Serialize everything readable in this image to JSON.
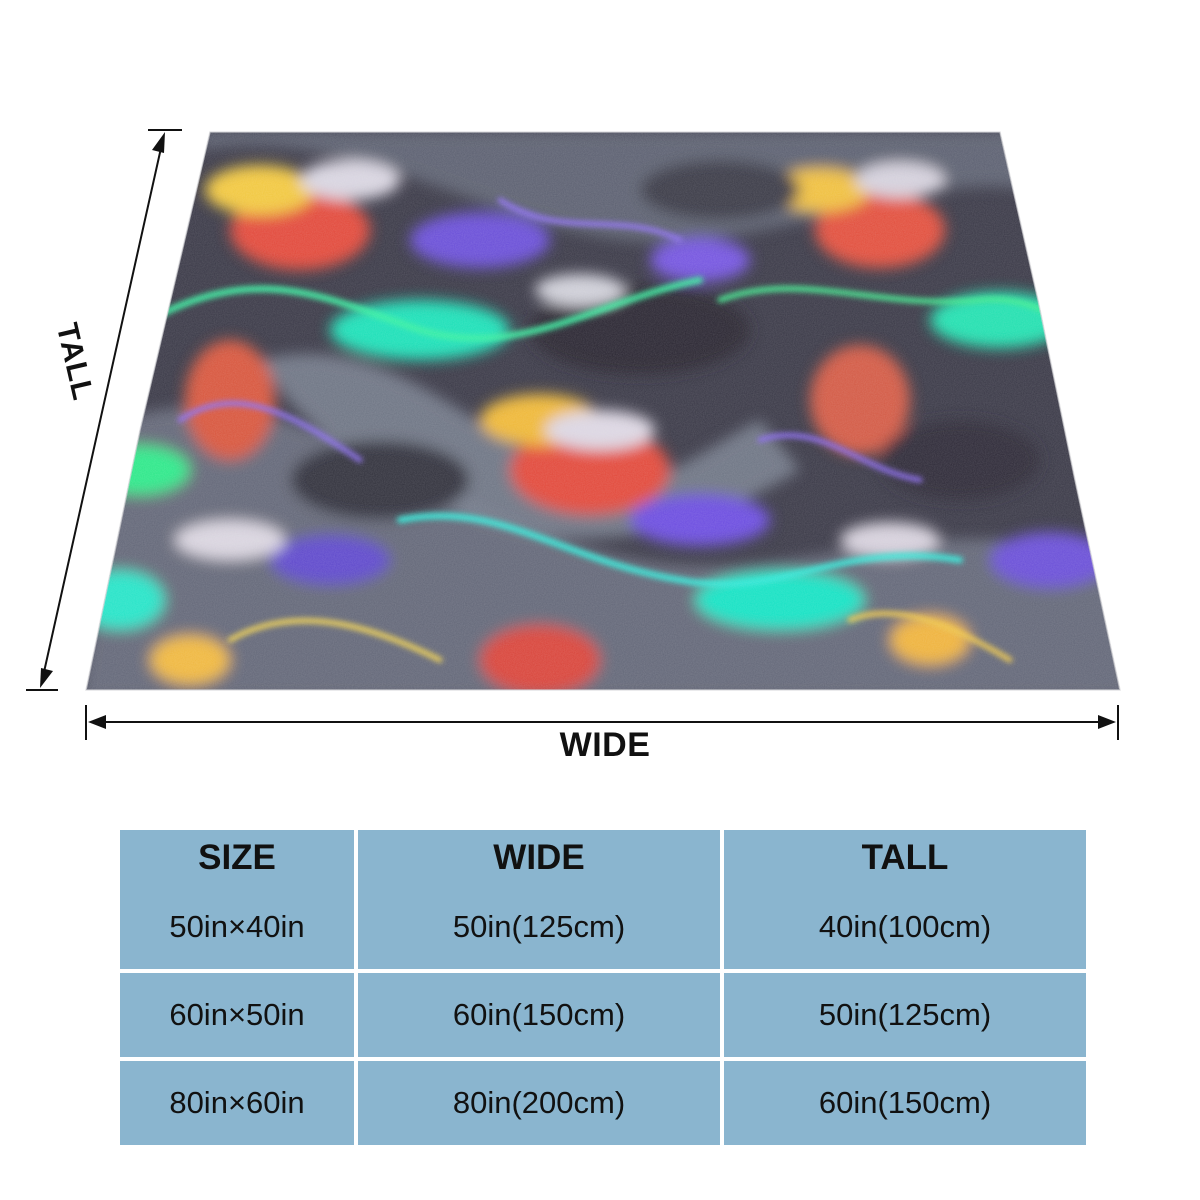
{
  "diagram": {
    "width_label": "WIDE",
    "height_label": "TALL",
    "blanket_pattern": "holographic-iridescent",
    "pattern_colors": [
      "#2e2c3a",
      "#6a4fd8",
      "#19e0c0",
      "#2cf07a",
      "#f0d040",
      "#e8453a",
      "#c8c8d8",
      "#7a7f8e"
    ]
  },
  "size_table": {
    "headers": [
      "SIZE",
      "WIDE",
      "TALL"
    ],
    "rows": [
      [
        "50in×40in",
        "50in(125cm)",
        "40in(100cm)"
      ],
      [
        "60in×50in",
        "60in(150cm)",
        "50in(125cm)"
      ],
      [
        "80in×60in",
        "80in(200cm)",
        "60in(150cm)"
      ]
    ],
    "cell_color": "#8ab5cf"
  }
}
